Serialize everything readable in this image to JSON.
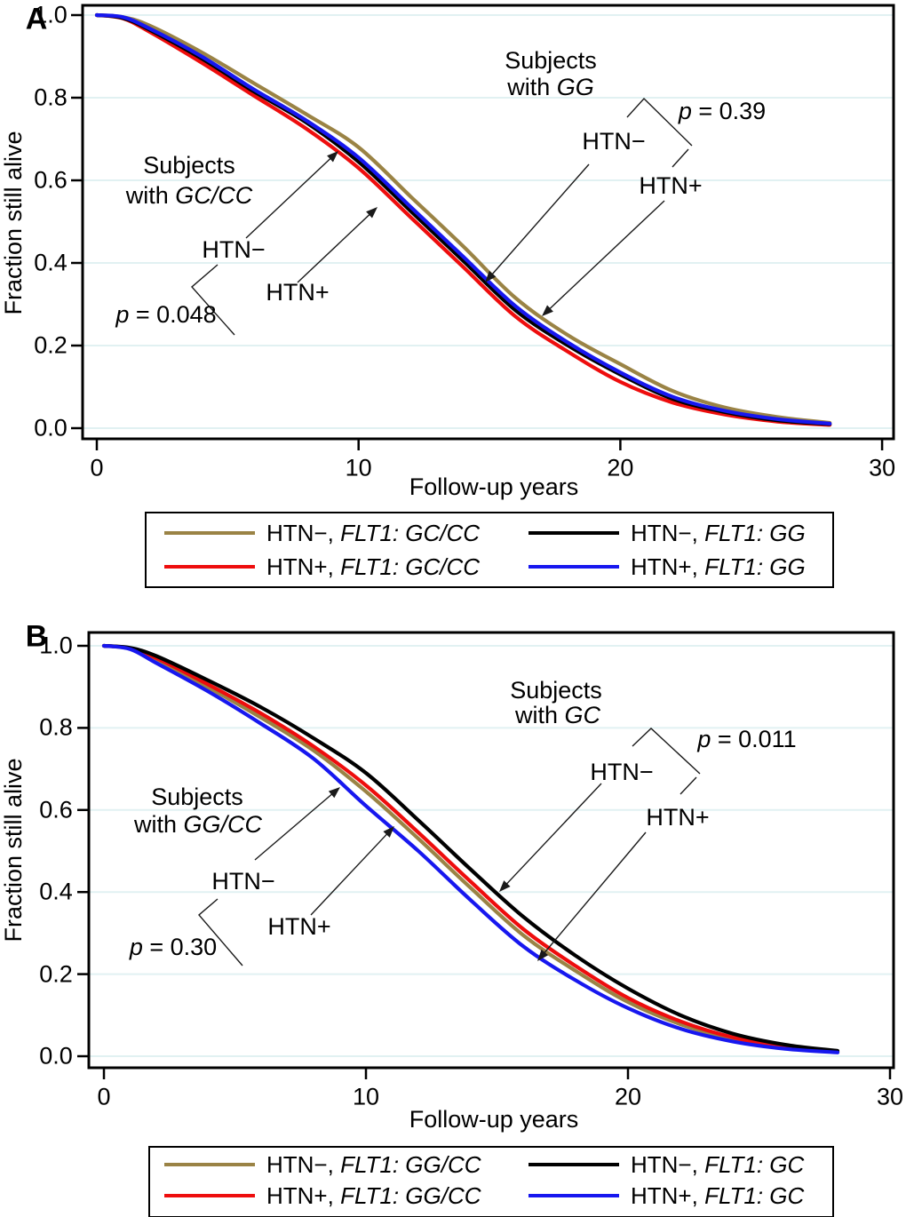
{
  "chart_data": [
    {
      "type": "line",
      "panel": "A",
      "title": "",
      "xlabel": "Follow-up years",
      "ylabel": "Fraction still alive",
      "xlim": [
        0,
        30
      ],
      "ylim": [
        0,
        1
      ],
      "x_ticks": [
        0,
        10,
        20,
        30
      ],
      "y_ticks": [
        1.0,
        0.8,
        0.6,
        0.4,
        0.2,
        0.0
      ],
      "grid": "horizontal",
      "legend_position": "below",
      "x": [
        0,
        1,
        2,
        4,
        6,
        8,
        10,
        12,
        14,
        16,
        18,
        20,
        22,
        24,
        26,
        28
      ],
      "series": [
        {
          "name": "HTN−, FLT1: GC/CC",
          "color": "#9a8345",
          "values": [
            1.0,
            0.995,
            0.975,
            0.91,
            0.835,
            0.76,
            0.68,
            0.56,
            0.44,
            0.315,
            0.225,
            0.155,
            0.09,
            0.05,
            0.027,
            0.013
          ]
        },
        {
          "name": "HTN+, FLT1: GC/CC",
          "color": "#ee0d0d",
          "values": [
            1.0,
            0.992,
            0.96,
            0.885,
            0.805,
            0.725,
            0.63,
            0.51,
            0.39,
            0.27,
            0.185,
            0.112,
            0.062,
            0.033,
            0.016,
            0.008
          ]
        },
        {
          "name": "HTN−, FLT1: GG",
          "color": "#000000",
          "values": [
            1.0,
            0.993,
            0.965,
            0.895,
            0.815,
            0.74,
            0.645,
            0.525,
            0.405,
            0.285,
            0.2,
            0.13,
            0.071,
            0.039,
            0.019,
            0.01
          ]
        },
        {
          "name": "HTN+, FLT1: GG",
          "color": "#1717ef",
          "values": [
            1.0,
            0.995,
            0.968,
            0.9,
            0.82,
            0.745,
            0.655,
            0.535,
            0.415,
            0.295,
            0.207,
            0.135,
            0.076,
            0.042,
            0.022,
            0.011
          ]
        }
      ],
      "annotations": [
        "Subjects with GC/CC",
        "p = 0.048",
        "Subjects with GG",
        "p = 0.39"
      ]
    },
    {
      "type": "line",
      "panel": "B",
      "title": "",
      "xlabel": "Follow-up years",
      "ylabel": "Fraction still alive",
      "xlim": [
        0,
        30
      ],
      "ylim": [
        0,
        1
      ],
      "x_ticks": [
        0,
        10,
        20,
        30
      ],
      "y_ticks": [
        1.0,
        0.8,
        0.6,
        0.4,
        0.2,
        0.0
      ],
      "grid": "horizontal",
      "legend_position": "below",
      "x": [
        0,
        1,
        2,
        4,
        6,
        8,
        10,
        12,
        14,
        16,
        18,
        20,
        22,
        24,
        26,
        28
      ],
      "series": [
        {
          "name": "HTN−, FLT1: GG/CC",
          "color": "#9a8345",
          "values": [
            1.0,
            0.993,
            0.965,
            0.898,
            0.825,
            0.745,
            0.645,
            0.53,
            0.41,
            0.295,
            0.208,
            0.132,
            0.078,
            0.042,
            0.021,
            0.01
          ]
        },
        {
          "name": "HTN+, FLT1: GG/CC",
          "color": "#ee0d0d",
          "values": [
            1.0,
            0.994,
            0.97,
            0.905,
            0.835,
            0.755,
            0.66,
            0.545,
            0.425,
            0.31,
            0.22,
            0.142,
            0.085,
            0.046,
            0.023,
            0.011
          ]
        },
        {
          "name": "HTN−, FLT1: GC",
          "color": "#000000",
          "values": [
            1.0,
            0.995,
            0.975,
            0.915,
            0.85,
            0.775,
            0.69,
            0.575,
            0.455,
            0.34,
            0.245,
            0.165,
            0.1,
            0.055,
            0.028,
            0.013
          ]
        },
        {
          "name": "HTN+, FLT1: GC",
          "color": "#1717ef",
          "values": [
            1.0,
            0.992,
            0.958,
            0.888,
            0.81,
            0.725,
            0.61,
            0.5,
            0.38,
            0.268,
            0.185,
            0.117,
            0.067,
            0.036,
            0.018,
            0.009
          ]
        }
      ],
      "annotations": [
        "Subjects with GG/CC",
        "p = 0.30",
        "Subjects with GC",
        "p = 0.011"
      ]
    }
  ],
  "figure": {
    "colors": {
      "olive": "#9a8345",
      "red": "#ee0d0d",
      "black": "#000000",
      "blue": "#1717ef",
      "gridline": "#e1f1f2"
    },
    "panels": [
      {
        "label": "A",
        "y_axis_title": "Fraction still alive",
        "x_axis_title": "Follow-up years",
        "y_tick_labels": [
          "1.0",
          "0.8",
          "0.6",
          "0.4",
          "0.2",
          "0.0"
        ],
        "x_tick_labels": [
          "0",
          "10",
          "20",
          "30"
        ],
        "annotations": {
          "group_left_line1": "Subjects",
          "group_left_line2_prefix": "with ",
          "group_left_line2_genotype": "GC/CC",
          "group_right_line1": "Subjects",
          "group_right_line2_prefix": "with ",
          "group_right_line2_genotype": "GG",
          "p_left_italic": "p",
          "p_left_rest": " = 0.048",
          "p_right_italic": "p",
          "p_right_rest": " = 0.39",
          "htn_minus_left": "HTN−",
          "htn_plus_left": "HTN+",
          "htn_minus_right": "HTN−",
          "htn_plus_right": "HTN+"
        },
        "legend": {
          "items": [
            {
              "prefix": "HTN−, ",
              "genotype": "FLT1: GC/CC",
              "color": "#9a8345"
            },
            {
              "prefix": "HTN+, ",
              "genotype": "FLT1: GC/CC",
              "color": "#ee0d0d"
            },
            {
              "prefix": "HTN−, ",
              "genotype": "FLT1: GG",
              "color": "#000000"
            },
            {
              "prefix": "HTN+, ",
              "genotype": "FLT1: GG",
              "color": "#1717ef"
            }
          ]
        }
      },
      {
        "label": "B",
        "y_axis_title": "Fraction still alive",
        "x_axis_title": "Follow-up years",
        "y_tick_labels": [
          "1.0",
          "0.8",
          "0.6",
          "0.4",
          "0.2",
          "0.0"
        ],
        "x_tick_labels": [
          "0",
          "10",
          "20",
          "30"
        ],
        "annotations": {
          "group_left_line1": "Subjects",
          "group_left_line2_prefix": "with ",
          "group_left_line2_genotype": "GG/CC",
          "group_right_line1": "Subjects",
          "group_right_line2_prefix": "with ",
          "group_right_line2_genotype": "GC",
          "p_left_italic": "p",
          "p_left_rest": " = 0.30",
          "p_right_italic": "p",
          "p_right_rest": " = 0.011",
          "htn_minus_left": "HTN−",
          "htn_plus_left": "HTN+",
          "htn_minus_right": "HTN−",
          "htn_plus_right": "HTN+"
        },
        "legend": {
          "items": [
            {
              "prefix": "HTN−, ",
              "genotype": "FLT1: GG/CC",
              "color": "#9a8345"
            },
            {
              "prefix": "HTN+, ",
              "genotype": "FLT1: GG/CC",
              "color": "#ee0d0d"
            },
            {
              "prefix": "HTN−, ",
              "genotype": "FLT1: GC",
              "color": "#000000"
            },
            {
              "prefix": "HTN+, ",
              "genotype": "FLT1: GC",
              "color": "#1717ef"
            }
          ]
        }
      }
    ]
  }
}
